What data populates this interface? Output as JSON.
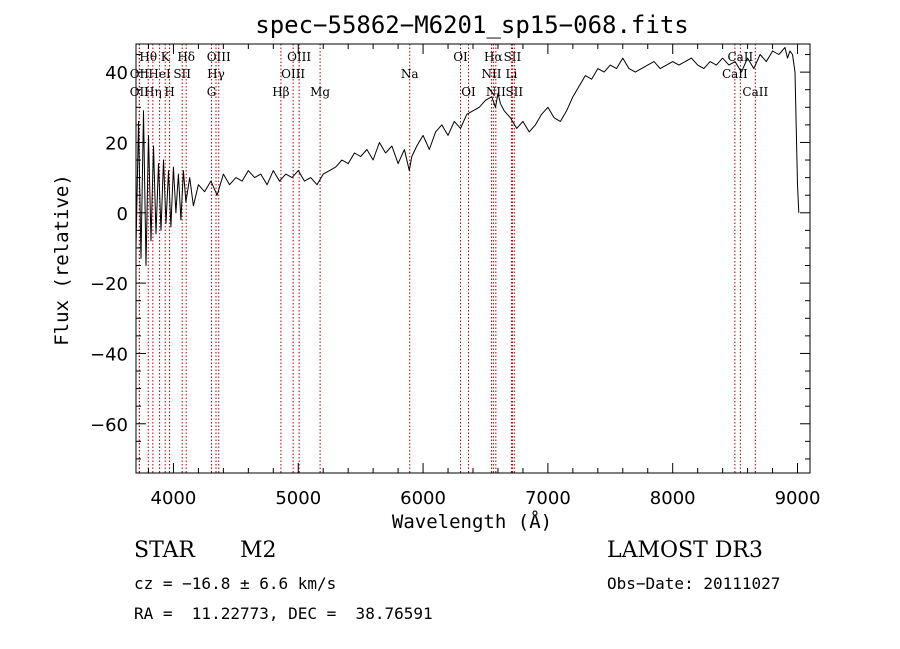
{
  "chart_data": {
    "type": "line",
    "title": "spec−55862−M6201_sp15−068.fits",
    "xlabel": "Wavelength (Å)",
    "ylabel": "Flux (relative)",
    "xlim": [
      3700,
      9100
    ],
    "ylim": [
      -74,
      48
    ],
    "x_ticks": [
      4000,
      5000,
      6000,
      7000,
      8000,
      9000
    ],
    "x_tick_labels": [
      "4000",
      "5000",
      "6000",
      "7000",
      "8000",
      "9000"
    ],
    "y_ticks": [
      -60,
      -40,
      -20,
      0,
      20,
      40
    ],
    "y_tick_labels": [
      "−60",
      "−40",
      "−20",
      "0",
      "20",
      "40"
    ],
    "line_color": "#000000",
    "marker_color": "#b00000",
    "series": [
      {
        "name": "spectrum",
        "x": [
          3700,
          3720,
          3740,
          3760,
          3780,
          3800,
          3820,
          3840,
          3860,
          3880,
          3900,
          3920,
          3940,
          3960,
          3980,
          4000,
          4020,
          4040,
          4060,
          4080,
          4100,
          4130,
          4160,
          4200,
          4250,
          4300,
          4350,
          4400,
          4450,
          4500,
          4550,
          4600,
          4650,
          4700,
          4750,
          4800,
          4850,
          4900,
          4950,
          5000,
          5050,
          5100,
          5150,
          5200,
          5250,
          5300,
          5350,
          5400,
          5450,
          5500,
          5550,
          5600,
          5650,
          5700,
          5750,
          5800,
          5850,
          5890,
          5910,
          5950,
          6000,
          6050,
          6100,
          6150,
          6200,
          6250,
          6300,
          6350,
          6400,
          6450,
          6500,
          6550,
          6580,
          6600,
          6620,
          6650,
          6700,
          6750,
          6800,
          6850,
          6900,
          6950,
          7000,
          7050,
          7100,
          7150,
          7200,
          7250,
          7300,
          7350,
          7400,
          7450,
          7500,
          7550,
          7600,
          7650,
          7700,
          7750,
          7800,
          7850,
          7900,
          7950,
          8000,
          8050,
          8100,
          8150,
          8200,
          8250,
          8300,
          8350,
          8400,
          8450,
          8500,
          8550,
          8600,
          8650,
          8700,
          8750,
          8800,
          8850,
          8900,
          8920,
          8940,
          8960,
          8980,
          9000,
          9010
        ],
        "y": [
          -10,
          26,
          -13,
          29,
          -15,
          22,
          -8,
          19,
          -6,
          14,
          -5,
          15,
          -3,
          12,
          -4,
          13,
          0,
          11,
          -2,
          12,
          3,
          10,
          2,
          8,
          6,
          9,
          5,
          11,
          8,
          10,
          9,
          12,
          10,
          11,
          8,
          12,
          9,
          11,
          10,
          12,
          9,
          10,
          8,
          11,
          12,
          13,
          15,
          14,
          17,
          16,
          18,
          15,
          20,
          17,
          19,
          14,
          18,
          12,
          16,
          19,
          22,
          18,
          23,
          25,
          22,
          26,
          24,
          28,
          29,
          30,
          32,
          33,
          30,
          34,
          31,
          29,
          27,
          24,
          26,
          23,
          25,
          28,
          30,
          27,
          26,
          29,
          33,
          36,
          39,
          38,
          41,
          40,
          42,
          41,
          44,
          41,
          40,
          41,
          42,
          43,
          41,
          42,
          43,
          42,
          43,
          44,
          42,
          41,
          43,
          42,
          44,
          42,
          43,
          40,
          44,
          41,
          45,
          43,
          46,
          45,
          47,
          44,
          46,
          45,
          40,
          8,
          0
        ]
      }
    ],
    "line_markers": [
      {
        "label": "Hθ",
        "x": 3798,
        "row": 1
      },
      {
        "label": "OII",
        "x": 3727,
        "row": 2
      },
      {
        "label": "OII",
        "x": 3727,
        "row": 3
      },
      {
        "label": "Hη",
        "x": 3835,
        "row": 3
      },
      {
        "label": "HeI",
        "x": 3889,
        "row": 2
      },
      {
        "label": "K",
        "x": 3934,
        "row": 1
      },
      {
        "label": "H",
        "x": 3969,
        "row": 3
      },
      {
        "label": "SII",
        "x": 4070,
        "row": 2
      },
      {
        "label": "Hδ",
        "x": 4102,
        "row": 1
      },
      {
        "label": "OIII",
        "x": 4363,
        "row": 1
      },
      {
        "label": "Hγ",
        "x": 4341,
        "row": 2
      },
      {
        "label": "G",
        "x": 4305,
        "row": 3
      },
      {
        "label": "OIII",
        "x": 5007,
        "row": 1
      },
      {
        "label": "OIII",
        "x": 4959,
        "row": 2
      },
      {
        "label": "Hβ",
        "x": 4861,
        "row": 3
      },
      {
        "label": "Mg",
        "x": 5175,
        "row": 3
      },
      {
        "label": "Na",
        "x": 5893,
        "row": 2
      },
      {
        "label": "OI",
        "x": 6300,
        "row": 1
      },
      {
        "label": "OI",
        "x": 6364,
        "row": 3
      },
      {
        "label": "Hα",
        "x": 6563,
        "row": 1
      },
      {
        "label": "NII",
        "x": 6548,
        "row": 2
      },
      {
        "label": "NII",
        "x": 6583,
        "row": 3
      },
      {
        "label": "SII",
        "x": 6716,
        "row": 1
      },
      {
        "label": "Li",
        "x": 6708,
        "row": 2
      },
      {
        "label": "SII",
        "x": 6731,
        "row": 3
      },
      {
        "label": "CaII",
        "x": 8542,
        "row": 1
      },
      {
        "label": "CaII",
        "x": 8498,
        "row": 2
      },
      {
        "label": "CaII",
        "x": 8662,
        "row": 3
      }
    ]
  },
  "info": {
    "object_type": "STAR",
    "subclass": "M2",
    "survey": "LAMOST DR3",
    "cz": "cz = −16.8 ± 6.6 km/s",
    "obs_date": "Obs−Date: 20111027",
    "coords": "RA =  11.22773, DEC =  38.76591"
  }
}
